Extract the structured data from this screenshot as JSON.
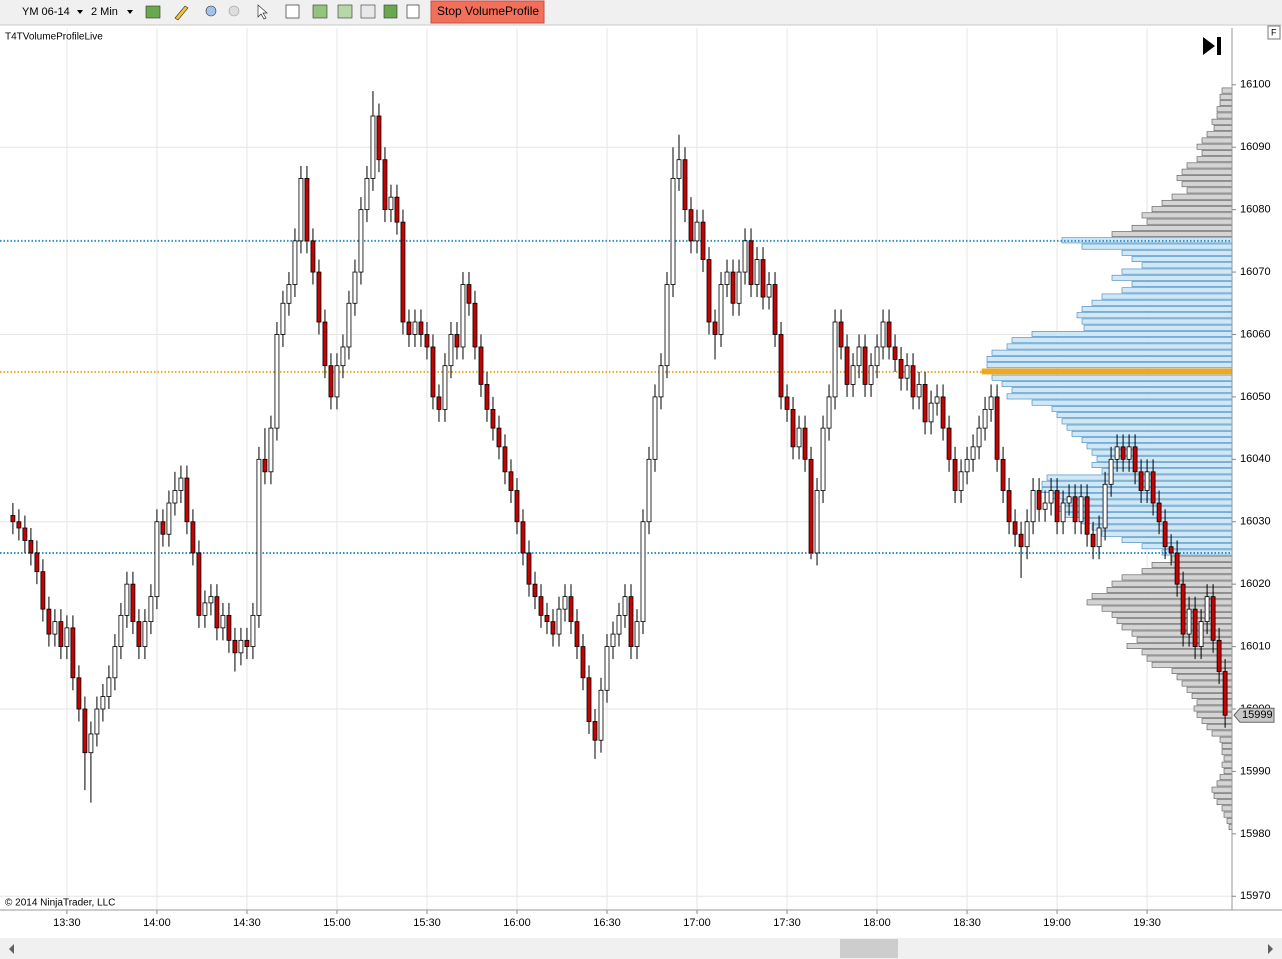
{
  "toolbar": {
    "instrument": "YM 06-14",
    "interval": "2 Min",
    "button": "Stop VolumeProfile"
  },
  "chart_data": {
    "type": "candlestick",
    "indicator": "T4TVolumeProfileLive",
    "copyright": "© 2014 NinjaTrader, LLC",
    "up_color": "#ffffff",
    "down_color": "#cc0000",
    "xlim": [
      787.7,
      1198.3
    ],
    "xticks": [
      {
        "value": 810,
        "label": "13:30"
      },
      {
        "value": 840,
        "label": "14:00"
      },
      {
        "value": 870,
        "label": "14:30"
      },
      {
        "value": 900,
        "label": "15:00"
      },
      {
        "value": 930,
        "label": "15:30"
      },
      {
        "value": 960,
        "label": "16:00"
      },
      {
        "value": 990,
        "label": "16:30"
      },
      {
        "value": 1020,
        "label": "17:00"
      },
      {
        "value": 1050,
        "label": "17:30"
      },
      {
        "value": 1080,
        "label": "18:00"
      },
      {
        "value": 1110,
        "label": "18:30"
      },
      {
        "value": 1140,
        "label": "19:00"
      },
      {
        "value": 1170,
        "label": "19:30"
      }
    ],
    "ylim": [
      15967.8,
      16109.1
    ],
    "yticks": [
      15970,
      15980,
      15990,
      16000,
      16010,
      16020,
      16030,
      16040,
      16050,
      16060,
      16070,
      16080,
      16090,
      16100
    ],
    "ygrid": [
      15970,
      16000,
      16030,
      16060,
      16090
    ],
    "last_price": 15999,
    "x": [
      792,
      794,
      796,
      798,
      800,
      802,
      804,
      806,
      808,
      810,
      812,
      814,
      816,
      818,
      820,
      822,
      824,
      826,
      828,
      830,
      832,
      834,
      836,
      838,
      840,
      842,
      844,
      846,
      848,
      850,
      852,
      854,
      856,
      858,
      860,
      862,
      864,
      866,
      868,
      870,
      872,
      874,
      876,
      878,
      880,
      882,
      884,
      886,
      888,
      890,
      892,
      894,
      896,
      898,
      900,
      902,
      904,
      906,
      908,
      910,
      912,
      914,
      916,
      918,
      920,
      922,
      924,
      926,
      928,
      930,
      932,
      934,
      936,
      938,
      940,
      942,
      944,
      946,
      948,
      950,
      952,
      954,
      956,
      958,
      960,
      962,
      964,
      966,
      968,
      970,
      972,
      974,
      976,
      978,
      980,
      982,
      984,
      986,
      988,
      990,
      992,
      994,
      996,
      998,
      1000,
      1002,
      1004,
      1006,
      1008,
      1010,
      1012,
      1014,
      1016,
      1018,
      1020,
      1022,
      1024,
      1026,
      1028,
      1030,
      1032,
      1034,
      1036,
      1038,
      1040,
      1042,
      1044,
      1046,
      1048,
      1050,
      1052,
      1054,
      1056,
      1058,
      1060,
      1062,
      1064,
      1066,
      1068,
      1070,
      1072,
      1074,
      1076,
      1078,
      1080,
      1082,
      1084,
      1086,
      1088,
      1090,
      1092,
      1094,
      1096,
      1098,
      1100,
      1102,
      1104,
      1106,
      1108,
      1110,
      1112,
      1114,
      1116,
      1118,
      1120,
      1122,
      1124,
      1126,
      1128,
      1130,
      1132,
      1134,
      1136,
      1138,
      1140,
      1142,
      1144,
      1146,
      1148,
      1150,
      1152,
      1154,
      1156,
      1158,
      1160,
      1162,
      1164,
      1166,
      1168,
      1170,
      1172,
      1174,
      1176,
      1178,
      1180,
      1182,
      1184,
      1186,
      1188,
      1190,
      1192,
      1194,
      1196
    ],
    "open": [
      16031,
      16030,
      16029,
      16027,
      16025,
      16022,
      16016,
      16012,
      16014,
      16010,
      16013,
      16005,
      16000,
      15993,
      15996,
      16000,
      16002,
      16005,
      16010,
      16015,
      16020,
      16014,
      16010,
      16014,
      16018,
      16030,
      16028,
      16033,
      16035,
      16037,
      16030,
      16025,
      16015,
      16017,
      16018,
      16013,
      16015,
      16011,
      16009,
      16011,
      16010,
      16015,
      16040,
      16038,
      16045,
      16060,
      16065,
      16068,
      16075,
      16085,
      16075,
      16070,
      16062,
      16055,
      16050,
      16055,
      16058,
      16065,
      16070,
      16080,
      16085,
      16095,
      16088,
      16080,
      16082,
      16078,
      16062,
      16060,
      16062,
      16060,
      16058,
      16050,
      16048,
      16055,
      16060,
      16058,
      16068,
      16065,
      16058,
      16052,
      16048,
      16045,
      16042,
      16038,
      16035,
      16030,
      16025,
      16020,
      16018,
      16015,
      16014,
      16012,
      16016,
      16018,
      16014,
      16010,
      16005,
      15998,
      15995,
      16003,
      16010,
      16012,
      16015,
      16018,
      16010,
      16014,
      16030,
      16040,
      16050,
      16055,
      16068,
      16085,
      16088,
      16080,
      16075,
      16078,
      16072,
      16062,
      16060,
      16068,
      16070,
      16065,
      16070,
      16075,
      16068,
      16072,
      16066,
      16068,
      16060,
      16050,
      16048,
      16042,
      16045,
      16040,
      16025,
      16035,
      16045,
      16050,
      16062,
      16058,
      16052,
      16055,
      16058,
      16052,
      16055,
      16058,
      16062,
      16058,
      16056,
      16053,
      16055,
      16050,
      16052,
      16046,
      16049,
      16050,
      16045,
      16040,
      16035,
      16038,
      16040,
      16042,
      16045,
      16048,
      16050,
      16040,
      16035,
      16030,
      16028,
      16026,
      16030,
      16035,
      16032,
      16033,
      16035,
      16030,
      16033,
      16034,
      16030,
      16034,
      16028,
      16026,
      16029,
      16036,
      16040,
      16042,
      16040,
      16042,
      16038,
      16035,
      16038,
      16033,
      16030,
      16026,
      16025,
      16020,
      16012,
      16016,
      16010,
      16014,
      16018,
      16011,
      16006
    ],
    "high": [
      16033,
      16032,
      16031,
      16029,
      16027,
      16024,
      16018,
      16016,
      16016,
      16015,
      16015,
      16007,
      16002,
      15998,
      16002,
      16004,
      16007,
      16012,
      16017,
      16022,
      16022,
      16016,
      16016,
      16020,
      16032,
      16032,
      16035,
      16038,
      16039,
      16039,
      16032,
      16027,
      16019,
      16020,
      16020,
      16017,
      16017,
      16013,
      16013,
      16013,
      16017,
      16042,
      16045,
      16047,
      16062,
      16067,
      16070,
      16077,
      16087,
      16087,
      16077,
      16072,
      16064,
      16057,
      16057,
      16060,
      16067,
      16072,
      16082,
      16087,
      16099,
      16097,
      16090,
      16084,
      16084,
      16080,
      16064,
      16064,
      16064,
      16062,
      16060,
      16052,
      16057,
      16062,
      16062,
      16070,
      16070,
      16067,
      16060,
      16054,
      16050,
      16047,
      16044,
      16040,
      16037,
      16032,
      16027,
      16022,
      16020,
      16017,
      16016,
      16018,
      16020,
      16020,
      16016,
      16012,
      16007,
      16000,
      16005,
      16012,
      16014,
      16017,
      16020,
      16020,
      16016,
      16032,
      16042,
      16052,
      16057,
      16070,
      16090,
      16092,
      16090,
      16082,
      16080,
      16080,
      16074,
      16064,
      16070,
      16072,
      16072,
      16072,
      16077,
      16077,
      16074,
      16074,
      16070,
      16070,
      16062,
      16052,
      16050,
      16047,
      16047,
      16042,
      16037,
      16047,
      16052,
      16064,
      16064,
      16060,
      16057,
      16060,
      16060,
      16057,
      16060,
      16064,
      16064,
      16060,
      16058,
      16057,
      16057,
      16054,
      16054,
      16051,
      16052,
      16052,
      16047,
      16042,
      16040,
      16042,
      16044,
      16047,
      16050,
      16052,
      16052,
      16042,
      16037,
      16032,
      16030,
      16032,
      16037,
      16037,
      16035,
      16037,
      16037,
      16035,
      16036,
      16036,
      16036,
      16036,
      16030,
      16031,
      16038,
      16042,
      16044,
      16044,
      16044,
      16044,
      16040,
      16040,
      16040,
      16035,
      16032,
      16028,
      16027,
      16022,
      16018,
      16018,
      16016,
      16020,
      16020,
      16013,
      16008
    ],
    "low": [
      16028,
      16027,
      16025,
      16023,
      16020,
      16014,
      16010,
      16010,
      16008,
      16008,
      16003,
      15998,
      15987,
      15985,
      15994,
      15998,
      16000,
      16003,
      16008,
      16013,
      16012,
      16008,
      16008,
      16012,
      16016,
      16026,
      16026,
      16031,
      16033,
      16028,
      16023,
      16013,
      16013,
      16015,
      16011,
      16011,
      16009,
      16006,
      16007,
      16008,
      16008,
      16013,
      16036,
      16036,
      16043,
      16058,
      16063,
      16066,
      16073,
      16073,
      16068,
      16060,
      16053,
      16048,
      16048,
      16053,
      16056,
      16063,
      16068,
      16078,
      16083,
      16086,
      16078,
      16078,
      16076,
      16060,
      16058,
      16058,
      16058,
      16056,
      16048,
      16046,
      16046,
      16053,
      16056,
      16056,
      16063,
      16056,
      16050,
      16046,
      16043,
      16040,
      16036,
      16033,
      16028,
      16023,
      16018,
      16016,
      16013,
      16012,
      16010,
      16010,
      16014,
      16012,
      16008,
      16003,
      15996,
      15992,
      15993,
      16001,
      16008,
      16010,
      16013,
      16008,
      16008,
      16012,
      16028,
      16038,
      16048,
      16053,
      16066,
      16083,
      16078,
      16073,
      16073,
      16070,
      16060,
      16056,
      16058,
      16066,
      16063,
      16063,
      16068,
      16066,
      16066,
      16064,
      16064,
      16058,
      16048,
      16046,
      16040,
      16040,
      16038,
      16024,
      16023,
      16033,
      16043,
      16048,
      16056,
      16050,
      16050,
      16053,
      16050,
      16050,
      16053,
      16056,
      16056,
      16054,
      16051,
      16051,
      16048,
      16048,
      16044,
      16044,
      16047,
      16043,
      16038,
      16033,
      16033,
      16036,
      16038,
      16040,
      16043,
      16046,
      16038,
      16033,
      16028,
      16026,
      16021,
      16024,
      16028,
      16030,
      16030,
      16031,
      16028,
      16028,
      16031,
      16028,
      16028,
      16026,
      16024,
      16024,
      16027,
      16034,
      16038,
      16038,
      16038,
      16036,
      16033,
      16033,
      16031,
      16028,
      16024,
      16023,
      16018,
      16010,
      16010,
      16008,
      16008,
      16012,
      16009,
      16004,
      15997
    ],
    "close": [
      16030,
      16029,
      16027,
      16025,
      16022,
      16016,
      16012,
      16014,
      16010,
      16013,
      16005,
      16000,
      15993,
      15996,
      16000,
      16002,
      16005,
      16010,
      16015,
      16020,
      16014,
      16010,
      16014,
      16018,
      16030,
      16028,
      16033,
      16035,
      16037,
      16030,
      16025,
      16015,
      16017,
      16018,
      16013,
      16015,
      16011,
      16009,
      16011,
      16010,
      16015,
      16040,
      16038,
      16045,
      16060,
      16065,
      16068,
      16075,
      16085,
      16075,
      16070,
      16062,
      16055,
      16050,
      16055,
      16058,
      16065,
      16070,
      16080,
      16085,
      16095,
      16088,
      16080,
      16082,
      16078,
      16062,
      16060,
      16062,
      16060,
      16058,
      16050,
      16048,
      16055,
      16060,
      16058,
      16068,
      16065,
      16058,
      16052,
      16048,
      16045,
      16042,
      16038,
      16035,
      16030,
      16025,
      16020,
      16018,
      16015,
      16014,
      16012,
      16016,
      16018,
      16014,
      16010,
      16005,
      15998,
      15995,
      16003,
      16010,
      16012,
      16015,
      16018,
      16010,
      16014,
      16030,
      16040,
      16050,
      16055,
      16068,
      16085,
      16088,
      16080,
      16075,
      16078,
      16072,
      16062,
      16060,
      16068,
      16070,
      16065,
      16070,
      16075,
      16068,
      16072,
      16066,
      16068,
      16060,
      16050,
      16048,
      16042,
      16045,
      16040,
      16025,
      16035,
      16045,
      16050,
      16062,
      16058,
      16052,
      16055,
      16058,
      16052,
      16055,
      16058,
      16062,
      16058,
      16056,
      16053,
      16055,
      16050,
      16052,
      16046,
      16049,
      16050,
      16045,
      16040,
      16035,
      16038,
      16040,
      16042,
      16045,
      16048,
      16050,
      16040,
      16035,
      16030,
      16028,
      16026,
      16030,
      16035,
      16032,
      16033,
      16035,
      16030,
      16033,
      16034,
      16030,
      16034,
      16028,
      16026,
      16029,
      16036,
      16040,
      16042,
      16040,
      16042,
      16038,
      16035,
      16038,
      16033,
      16030,
      16026,
      16025,
      16020,
      16012,
      16016,
      16010,
      16014,
      16018,
      16011,
      16006,
      15999
    ],
    "volume_profile": {
      "value_area_color": "#cfe8f7",
      "outside_color": "#d4d4d4",
      "poc_color": "#f2a81d",
      "line_color": "#2f8fd0",
      "poc": 16054,
      "value_area_high": 16075,
      "value_area_low": 16025,
      "prices": [
        16099,
        16098,
        16097,
        16096,
        16095,
        16094,
        16093,
        16092,
        16091,
        16090,
        16089,
        16088,
        16087,
        16086,
        16085,
        16084,
        16083,
        16082,
        16081,
        16080,
        16079,
        16078,
        16077,
        16076,
        16075,
        16074,
        16073,
        16072,
        16071,
        16070,
        16069,
        16068,
        16067,
        16066,
        16065,
        16064,
        16063,
        16062,
        16061,
        16060,
        16059,
        16058,
        16057,
        16056,
        16055,
        16054,
        16053,
        16052,
        16051,
        16050,
        16049,
        16048,
        16047,
        16046,
        16045,
        16044,
        16043,
        16042,
        16041,
        16040,
        16039,
        16038,
        16037,
        16036,
        16035,
        16034,
        16033,
        16032,
        16031,
        16030,
        16029,
        16028,
        16027,
        16026,
        16025,
        16024,
        16023,
        16022,
        16021,
        16020,
        16019,
        16018,
        16017,
        16016,
        16015,
        16014,
        16013,
        16012,
        16011,
        16010,
        16009,
        16008,
        16007,
        16006,
        16005,
        16004,
        16003,
        16002,
        16001,
        16000,
        15999,
        15998,
        15997,
        15996,
        15995,
        15994,
        15993,
        15992,
        15991,
        15990,
        15989,
        15988,
        15987,
        15986,
        15985,
        15984,
        15983,
        15982,
        15981
      ],
      "volumes": [
        10,
        12,
        12,
        15,
        15,
        20,
        18,
        25,
        30,
        35,
        30,
        35,
        45,
        50,
        55,
        50,
        45,
        60,
        70,
        80,
        90,
        85,
        100,
        120,
        170,
        150,
        110,
        100,
        90,
        110,
        120,
        100,
        110,
        130,
        140,
        150,
        155,
        150,
        148,
        200,
        220,
        225,
        240,
        245,
        245,
        250,
        240,
        230,
        220,
        225,
        200,
        180,
        175,
        170,
        165,
        160,
        150,
        145,
        140,
        135,
        140,
        130,
        185,
        190,
        190,
        180,
        170,
        175,
        170,
        150,
        140,
        130,
        110,
        90,
        70,
        60,
        80,
        90,
        110,
        120,
        125,
        140,
        145,
        130,
        120,
        115,
        110,
        100,
        95,
        105,
        90,
        85,
        80,
        60,
        55,
        50,
        45,
        40,
        35,
        38,
        35,
        30,
        25,
        20,
        12,
        10,
        10,
        8,
        10,
        8,
        12,
        15,
        20,
        18,
        15,
        10,
        8,
        5,
        3
      ]
    }
  }
}
